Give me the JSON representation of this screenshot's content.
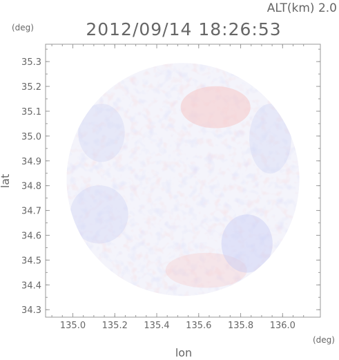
{
  "header": {
    "altitude_label": "ALT(km) 2.0",
    "timestamp": "2012/09/14 18:26:53"
  },
  "axes": {
    "x_title": "lon",
    "y_title": "lat",
    "x_unit": "(deg)",
    "y_unit": "(deg)",
    "x_range": [
      134.87,
      136.18
    ],
    "y_range": [
      34.27,
      35.37
    ],
    "x_ticks": [
      {
        "value": 135.0,
        "label": "135.0"
      },
      {
        "value": 135.2,
        "label": "135.2"
      },
      {
        "value": 135.4,
        "label": "135.4"
      },
      {
        "value": 135.6,
        "label": "135.6"
      },
      {
        "value": 135.8,
        "label": "135.8"
      },
      {
        "value": 136.0,
        "label": "136.0"
      }
    ],
    "y_ticks": [
      {
        "value": 34.3,
        "label": "34.3"
      },
      {
        "value": 34.4,
        "label": "34.4"
      },
      {
        "value": 34.5,
        "label": "34.5"
      },
      {
        "value": 34.6,
        "label": "34.6"
      },
      {
        "value": 34.7,
        "label": "34.7"
      },
      {
        "value": 34.8,
        "label": "34.8"
      },
      {
        "value": 34.9,
        "label": "34.9"
      },
      {
        "value": 35.0,
        "label": "35.0"
      },
      {
        "value": 35.1,
        "label": "35.1"
      },
      {
        "value": 35.2,
        "label": "35.2"
      },
      {
        "value": 35.3,
        "label": "35.3"
      }
    ]
  },
  "radar": {
    "center_lon": 135.525,
    "center_lat": 34.825,
    "radius_deg": 0.555,
    "colors": {
      "base": "#f4f4fb",
      "positive": "#f6c9c9",
      "negative": "#c8cdf3",
      "frame": "#999999"
    }
  }
}
